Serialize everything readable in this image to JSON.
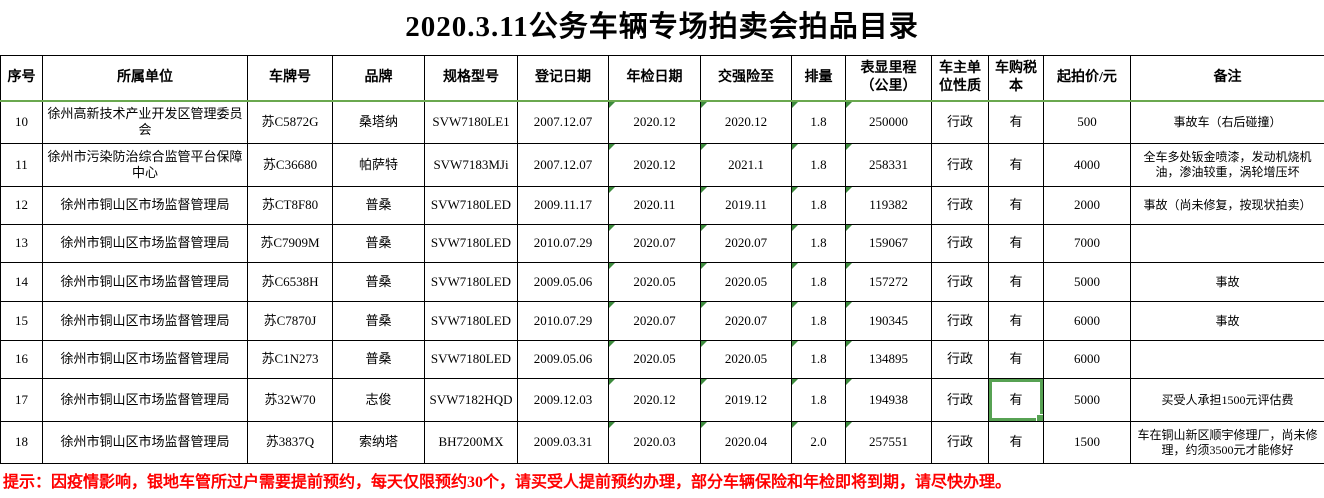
{
  "title": "2020.3.11公务车辆专场拍卖会拍品目录",
  "table": {
    "headers": [
      "序号",
      "所属单位",
      "车牌号",
      "品牌",
      "规格型号",
      "登记日期",
      "年检日期",
      "交强险至",
      "排量",
      "表显里程（公里）",
      "车主单位性质",
      "车购税本",
      "起拍价/元",
      "备注"
    ],
    "rows": [
      [
        "10",
        "徐州高新技术产业开发区管理委员会",
        "苏C5872G",
        "桑塔纳",
        "SVW7180LE1",
        "2007.12.07",
        "2020.12",
        "2020.12",
        "1.8",
        "250000",
        "行政",
        "有",
        "500",
        "事故车（右后碰撞）"
      ],
      [
        "11",
        "徐州市污染防治综合监管平台保障中心",
        "苏C36680",
        "帕萨特",
        "SVW7183MJi",
        "2007.12.07",
        "2020.12",
        "2021.1",
        "1.8",
        "258331",
        "行政",
        "有",
        "4000",
        "全车多处钣金喷漆，发动机烧机油，渗油较重，涡轮增压坏"
      ],
      [
        "12",
        "徐州市铜山区市场监督管理局",
        "苏CT8F80",
        "普桑",
        "SVW7180LED",
        "2009.11.17",
        "2020.11",
        "2019.11",
        "1.8",
        "119382",
        "行政",
        "有",
        "2000",
        "事故（尚未修复，按现状拍卖）"
      ],
      [
        "13",
        "徐州市铜山区市场监督管理局",
        "苏C7909M",
        "普桑",
        "SVW7180LED",
        "2010.07.29",
        "2020.07",
        "2020.07",
        "1.8",
        "159067",
        "行政",
        "有",
        "7000",
        ""
      ],
      [
        "14",
        "徐州市铜山区市场监督管理局",
        "苏C6538H",
        "普桑",
        "SVW7180LED",
        "2009.05.06",
        "2020.05",
        "2020.05",
        "1.8",
        "157272",
        "行政",
        "有",
        "5000",
        "事故"
      ],
      [
        "15",
        "徐州市铜山区市场监督管理局",
        "苏C7870J",
        "普桑",
        "SVW7180LED",
        "2010.07.29",
        "2020.07",
        "2020.07",
        "1.8",
        "190345",
        "行政",
        "有",
        "6000",
        "事故"
      ],
      [
        "16",
        "徐州市铜山区市场监督管理局",
        "苏C1N273",
        "普桑",
        "SVW7180LED",
        "2009.05.06",
        "2020.05",
        "2020.05",
        "1.8",
        "134895",
        "行政",
        "有",
        "6000",
        ""
      ],
      [
        "17",
        "徐州市铜山区市场监督管理局",
        "苏32W70",
        "志俊",
        "SVW7182HQD",
        "2009.12.03",
        "2020.12",
        "2019.12",
        "1.8",
        "194938",
        "行政",
        "有",
        "5000",
        "买受人承担1500元评估费"
      ],
      [
        "18",
        "徐州市铜山区市场监督管理局",
        "苏3837Q",
        "索纳塔",
        "BH7200MX",
        "2009.03.31",
        "2020.03",
        "2020.04",
        "2.0",
        "257551",
        "行政",
        "有",
        "1500",
        "车在铜山新区顺宇修理厂，尚未修理，约须3500元才能修好"
      ]
    ]
  },
  "footer_note": "提示：因疫情影响，银地车管所过户需要提前预约，每天仅限预约30个，请买受人提前预约办理，部分车辆保险和年检即将到期，请尽快办理。",
  "ui": {
    "selected_cell": {
      "row_index": 7,
      "col_index": 11,
      "value": "有"
    },
    "error_indicator_columns": [
      6,
      7,
      8,
      9
    ],
    "colors": {
      "grid": "#000000",
      "note_red": "#ff0000",
      "selection_green": "#57a253",
      "indicator_green": "#3d8b3d",
      "pane_line_green": "#6aa84f"
    }
  }
}
